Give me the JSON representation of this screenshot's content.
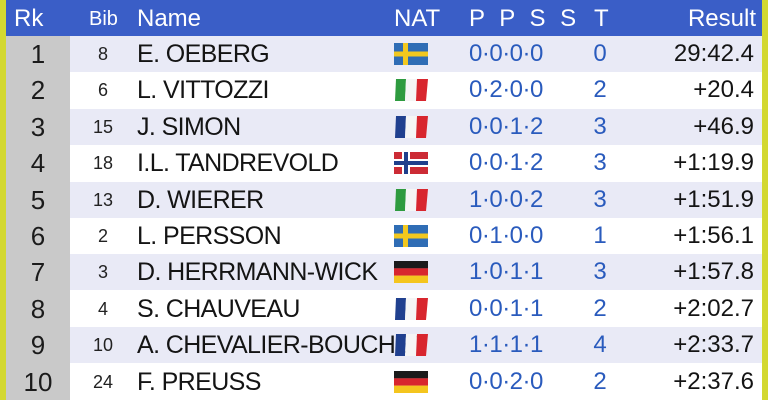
{
  "header": {
    "rank": "Rk",
    "bib": "Bib",
    "name": "Name",
    "nat": "NAT",
    "shooting": "P P S S",
    "t": "T",
    "result": "Result"
  },
  "rows": [
    {
      "rank": "1",
      "bib": "8",
      "name": "E. OEBERG",
      "flag": "sweden-flag-icon",
      "shooting": "0·0·0·0",
      "t": "0",
      "result": "29:42.4"
    },
    {
      "rank": "2",
      "bib": "6",
      "name": "L. VITTOZZI",
      "flag": "italy-flag-icon",
      "shooting": "0·2·0·0",
      "t": "2",
      "result": "+20.4"
    },
    {
      "rank": "3",
      "bib": "15",
      "name": "J. SIMON",
      "flag": "france-flag-icon",
      "shooting": "0·0·1·2",
      "t": "3",
      "result": "+46.9"
    },
    {
      "rank": "4",
      "bib": "18",
      "name": "I.L. TANDREVOLD",
      "flag": "norway-flag-icon",
      "shooting": "0·0·1·2",
      "t": "3",
      "result": "+1:19.9"
    },
    {
      "rank": "5",
      "bib": "13",
      "name": "D. WIERER",
      "flag": "italy-flag-icon",
      "shooting": "1·0·0·2",
      "t": "3",
      "result": "+1:51.9"
    },
    {
      "rank": "6",
      "bib": "2",
      "name": "L. PERSSON",
      "flag": "sweden-flag-icon",
      "shooting": "0·1·0·0",
      "t": "1",
      "result": "+1:56.1"
    },
    {
      "rank": "7",
      "bib": "3",
      "name": "D. HERRMANN-WICK",
      "flag": "germany-flag-icon",
      "shooting": "1·0·1·1",
      "t": "3",
      "result": "+1:57.8"
    },
    {
      "rank": "8",
      "bib": "4",
      "name": "S. CHAUVEAU",
      "flag": "france-flag-icon",
      "shooting": "0·0·1·1",
      "t": "2",
      "result": "+2:02.7"
    },
    {
      "rank": "9",
      "bib": "10",
      "name": "A. CHEVALIER-BOUCHET",
      "flag": "france-flag-icon",
      "shooting": "1·1·1·1",
      "t": "4",
      "result": "+2:33.7"
    },
    {
      "rank": "10",
      "bib": "24",
      "name": "F. PREUSS",
      "flag": "germany-flag-icon",
      "shooting": "0·0·2·0",
      "t": "2",
      "result": "+2:37.6"
    }
  ],
  "colors": {
    "frame": "#d3d831",
    "header_bg": "#3a5ec7",
    "rank_col_bg": "#c9c9c9",
    "stripe": "#e9eaf6",
    "accent_text": "#2a5bbd"
  }
}
